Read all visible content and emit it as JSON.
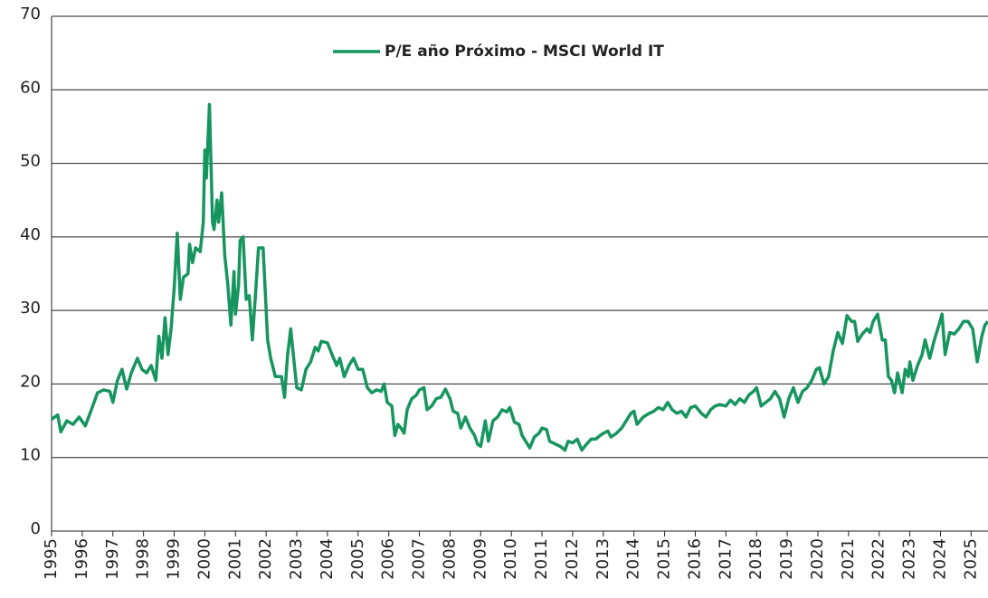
{
  "chart_data": {
    "type": "line",
    "series": [
      {
        "name": "P/E año Próximo - MSCI World IT",
        "color": "#17955f",
        "x": [
          1995.0,
          1995.2,
          1995.3,
          1995.5,
          1995.7,
          1995.9,
          1996.1,
          1996.3,
          1996.5,
          1996.7,
          1996.9,
          1997.0,
          1997.15,
          1997.3,
          1997.45,
          1997.6,
          1997.8,
          1997.95,
          1998.1,
          1998.25,
          1998.4,
          1998.5,
          1998.6,
          1998.7,
          1998.8,
          1998.9,
          1999.0,
          1999.1,
          1999.2,
          1999.3,
          1999.45,
          1999.5,
          1999.6,
          1999.7,
          1999.85,
          1999.95,
          2000.0,
          2000.05,
          2000.15,
          2000.25,
          2000.3,
          2000.4,
          2000.45,
          2000.55,
          2000.65,
          2000.75,
          2000.85,
          2000.95,
          2001.0,
          2001.1,
          2001.15,
          2001.25,
          2001.35,
          2001.45,
          2001.55,
          2001.65,
          2001.75,
          2001.9,
          2002.05,
          2002.15,
          2002.3,
          2002.5,
          2002.6,
          2002.7,
          2002.8,
          2002.9,
          2003.0,
          2003.15,
          2003.3,
          2003.45,
          2003.6,
          2003.7,
          2003.8,
          2004.0,
          2004.15,
          2004.3,
          2004.4,
          2004.55,
          2004.7,
          2004.85,
          2005.0,
          2005.15,
          2005.3,
          2005.45,
          2005.6,
          2005.75,
          2005.85,
          2005.95,
          2006.1,
          2006.2,
          2006.3,
          2006.4,
          2006.5,
          2006.6,
          2006.75,
          2006.9,
          2007.0,
          2007.15,
          2007.25,
          2007.4,
          2007.55,
          2007.7,
          2007.85,
          2008.0,
          2008.1,
          2008.25,
          2008.35,
          2008.5,
          2008.65,
          2008.8,
          2008.9,
          2009.0,
          2009.15,
          2009.25,
          2009.4,
          2009.55,
          2009.7,
          2009.85,
          2009.95,
          2010.1,
          2010.25,
          2010.35,
          2010.5,
          2010.6,
          2010.75,
          2010.9,
          2011.0,
          2011.15,
          2011.25,
          2011.45,
          2011.6,
          2011.75,
          2011.85,
          2012.0,
          2012.15,
          2012.3,
          2012.45,
          2012.6,
          2012.75,
          2012.9,
          2013.0,
          2013.15,
          2013.25,
          2013.4,
          2013.6,
          2013.75,
          2013.9,
          2014.0,
          2014.1,
          2014.3,
          2014.5,
          2014.65,
          2014.8,
          2014.95,
          2015.1,
          2015.25,
          2015.4,
          2015.55,
          2015.7,
          2015.85,
          2016.0,
          2016.2,
          2016.35,
          2016.5,
          2016.65,
          2016.8,
          2017.0,
          2017.15,
          2017.3,
          2017.45,
          2017.6,
          2017.75,
          2017.9,
          2018.0,
          2018.15,
          2018.3,
          2018.45,
          2018.6,
          2018.75,
          2018.9,
          2019.05,
          2019.2,
          2019.35,
          2019.5,
          2019.65,
          2019.8,
          2019.95,
          2020.05,
          2020.2,
          2020.35,
          2020.5,
          2020.65,
          2020.8,
          2020.95,
          2021.1,
          2021.2,
          2021.3,
          2021.45,
          2021.6,
          2021.7,
          2021.8,
          2021.95,
          2022.1,
          2022.2,
          2022.3,
          2022.4,
          2022.5,
          2022.6,
          2022.75,
          2022.85,
          2022.95,
          2023.0,
          2023.1,
          2023.25,
          2023.4,
          2023.5,
          2023.65,
          2023.8,
          2023.95,
          2024.05,
          2024.15,
          2024.3,
          2024.45,
          2024.6,
          2024.75,
          2024.9,
          2025.05,
          2025.2,
          2025.35,
          2025.45,
          2025.55
        ],
        "values": [
          15.2,
          15.8,
          13.5,
          15,
          14.5,
          15.5,
          14.3,
          16.5,
          18.8,
          19.2,
          19,
          17.5,
          20.5,
          22,
          19.3,
          21.5,
          23.5,
          22,
          21.5,
          22.5,
          20.5,
          26.5,
          23.5,
          29,
          24,
          27.5,
          33,
          40.5,
          31.5,
          34.5,
          35,
          39,
          36.5,
          38.5,
          38,
          42,
          51.8,
          48,
          58,
          42,
          41,
          45,
          42,
          46,
          37.5,
          33.5,
          28,
          35.3,
          29.5,
          33.5,
          39.5,
          40,
          31.5,
          32,
          26,
          32,
          38.5,
          38.5,
          26,
          23.5,
          21,
          21,
          18.2,
          24,
          27.5,
          23.5,
          19.5,
          19.2,
          22,
          23,
          25,
          24.5,
          25.8,
          25.6,
          24,
          22.5,
          23.5,
          21,
          22.5,
          23.5,
          22,
          22,
          19.5,
          18.8,
          19.2,
          19,
          20,
          17.5,
          17,
          13,
          14.5,
          14,
          13.3,
          16.5,
          18,
          18.5,
          19.2,
          19.5,
          16.5,
          17,
          18,
          18.2,
          19.3,
          18,
          16.3,
          16,
          14,
          15.5,
          14,
          13,
          11.8,
          11.5,
          15,
          12.2,
          15,
          15.5,
          16.5,
          16.2,
          16.8,
          14.8,
          14.5,
          13,
          12,
          11.3,
          12.8,
          13.3,
          14,
          13.8,
          12.2,
          11.8,
          11.5,
          11,
          12.2,
          12,
          12.5,
          11,
          11.8,
          12.5,
          12.5,
          13,
          13.3,
          13.6,
          12.8,
          13.2,
          14,
          15,
          16,
          16.3,
          14.5,
          15.5,
          16,
          16.3,
          16.8,
          16.5,
          17.5,
          16.5,
          16,
          16.3,
          15.5,
          16.8,
          17,
          16,
          15.5,
          16.5,
          17,
          17.2,
          17,
          17.8,
          17.2,
          18,
          17.5,
          18.5,
          19,
          19.5,
          17,
          17.5,
          18,
          19,
          18,
          15.5,
          18,
          19.5,
          17.5,
          19,
          19.5,
          20.5,
          22,
          22.2,
          20,
          21,
          24.5,
          27,
          25.5,
          29.3,
          28.5,
          28.5,
          25.8,
          26.8,
          27.5,
          27,
          28.5,
          29.5,
          26,
          26,
          21,
          20.5,
          18.8,
          21.5,
          18.8,
          22,
          21,
          23,
          20.5,
          22.5,
          24,
          26,
          23.5,
          26,
          28,
          29.5,
          24,
          27,
          26.8,
          27.5,
          28.5,
          28.5,
          27.5,
          23,
          26.5,
          28,
          28.5
        ]
      }
    ],
    "xlim": [
      1995,
      2025.55
    ],
    "xticks": [
      1995,
      1996,
      1997,
      1998,
      1999,
      2000,
      2001,
      2002,
      2003,
      2004,
      2005,
      2006,
      2007,
      2008,
      2009,
      2010,
      2011,
      2012,
      2013,
      2014,
      2015,
      2016,
      2017,
      2018,
      2019,
      2020,
      2021,
      2022,
      2023,
      2024,
      2025
    ],
    "ylim": [
      0,
      70
    ],
    "yticks": [
      0,
      10,
      20,
      30,
      40,
      50,
      60,
      70
    ],
    "grid": true,
    "legend": "top"
  }
}
